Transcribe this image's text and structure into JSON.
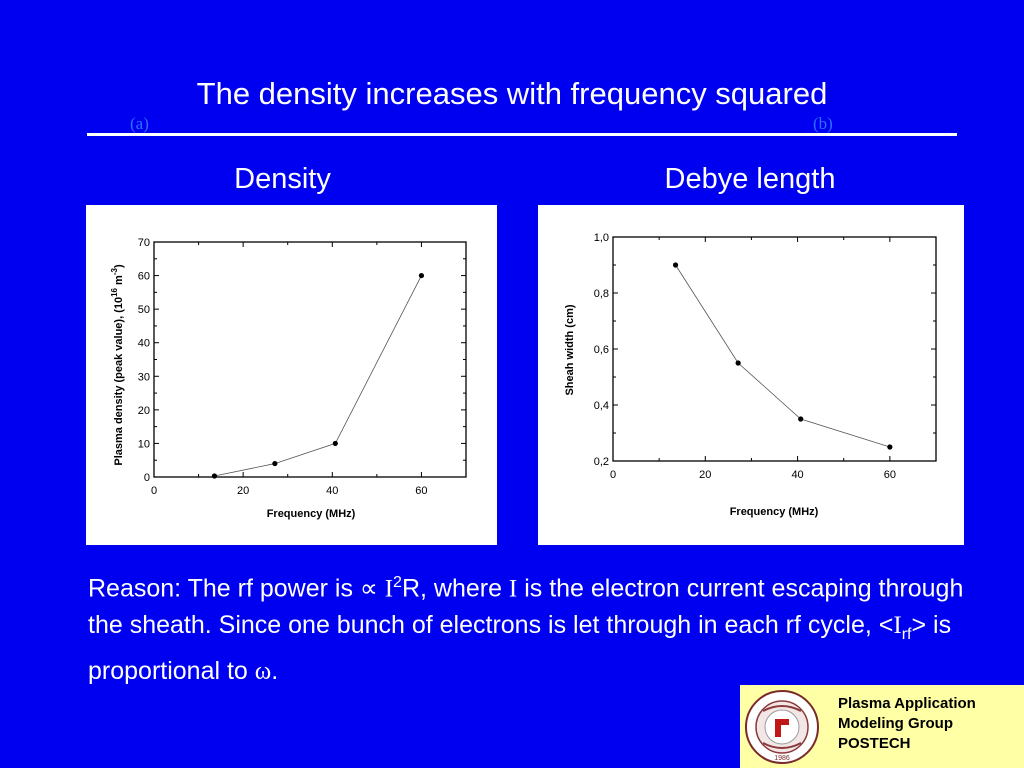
{
  "slide": {
    "title": "The density increases with frequency squared",
    "panel_a_tag": "(a)",
    "panel_b_tag": "(b)",
    "left_heading": "Density",
    "right_heading": "Debye length",
    "reason": {
      "part1": "Reason:  The rf power is ",
      "propto": "∝",
      "current1": "I",
      "exp": "2",
      "part2": "R, where ",
      "current2": "I",
      "part3": " is the electron current escaping through the sheath.   Since one bunch of electrons is let through in each rf cycle,  <",
      "current3": "I",
      "sub": "rf",
      "part4": "> is proportional to ",
      "omega": "ω",
      "part5": "."
    },
    "footer": {
      "line1": "Plasma Application",
      "line2": "Modeling Group",
      "line3": "POSTECH",
      "seal_year": "1986"
    }
  },
  "chart_data": [
    {
      "type": "line",
      "title": "",
      "xlabel": "Frequency (MHz)",
      "ylabel": "Plasma density (peak value), (10^16 m^-3)",
      "xlim": [
        0,
        70
      ],
      "ylim": [
        0,
        70
      ],
      "xticks": [
        "0",
        "20",
        "40",
        "60"
      ],
      "yticks": [
        "0",
        "10",
        "20",
        "30",
        "40",
        "50",
        "60",
        "70"
      ],
      "grid": false,
      "series": [
        {
          "x": [
            13.56,
            27.12,
            40.68,
            60
          ],
          "y": [
            0.3,
            4,
            10,
            60
          ]
        }
      ]
    },
    {
      "type": "line",
      "title": "",
      "xlabel": "Frequency (MHz)",
      "ylabel": "Sheah width  (cm)",
      "xlim": [
        0,
        70
      ],
      "ylim": [
        0.2,
        1.0
      ],
      "xticks": [
        "0",
        "20",
        "40",
        "60"
      ],
      "yticks": [
        "0,2",
        "0,4",
        "0,6",
        "0,8",
        "1,0"
      ],
      "grid": false,
      "series": [
        {
          "x": [
            13.56,
            27.12,
            40.68,
            60
          ],
          "y": [
            0.9,
            0.55,
            0.35,
            0.25
          ]
        }
      ]
    }
  ]
}
